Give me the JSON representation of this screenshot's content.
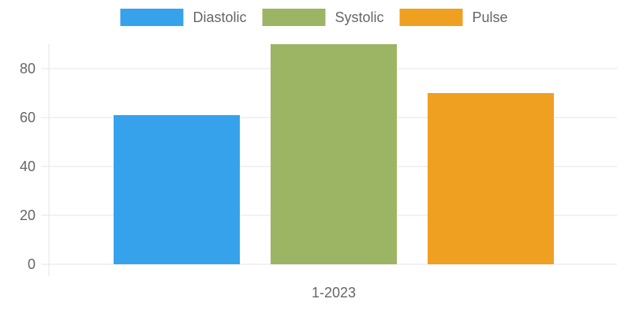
{
  "chart_data": {
    "type": "bar",
    "title": "",
    "xlabel": "",
    "ylabel": "",
    "categories": [
      "1-2023"
    ],
    "series": [
      {
        "name": "Diastolic",
        "values": [
          61
        ],
        "color": "#36a2eb"
      },
      {
        "name": "Systolic",
        "values": [
          90
        ],
        "color": "#9bb565"
      },
      {
        "name": "Pulse",
        "values": [
          70
        ],
        "color": "#f0a020"
      }
    ],
    "ylim": [
      0,
      90
    ],
    "yticks": [
      0,
      20,
      40,
      60,
      80
    ],
    "grid": true,
    "legend_position": "top-center"
  }
}
